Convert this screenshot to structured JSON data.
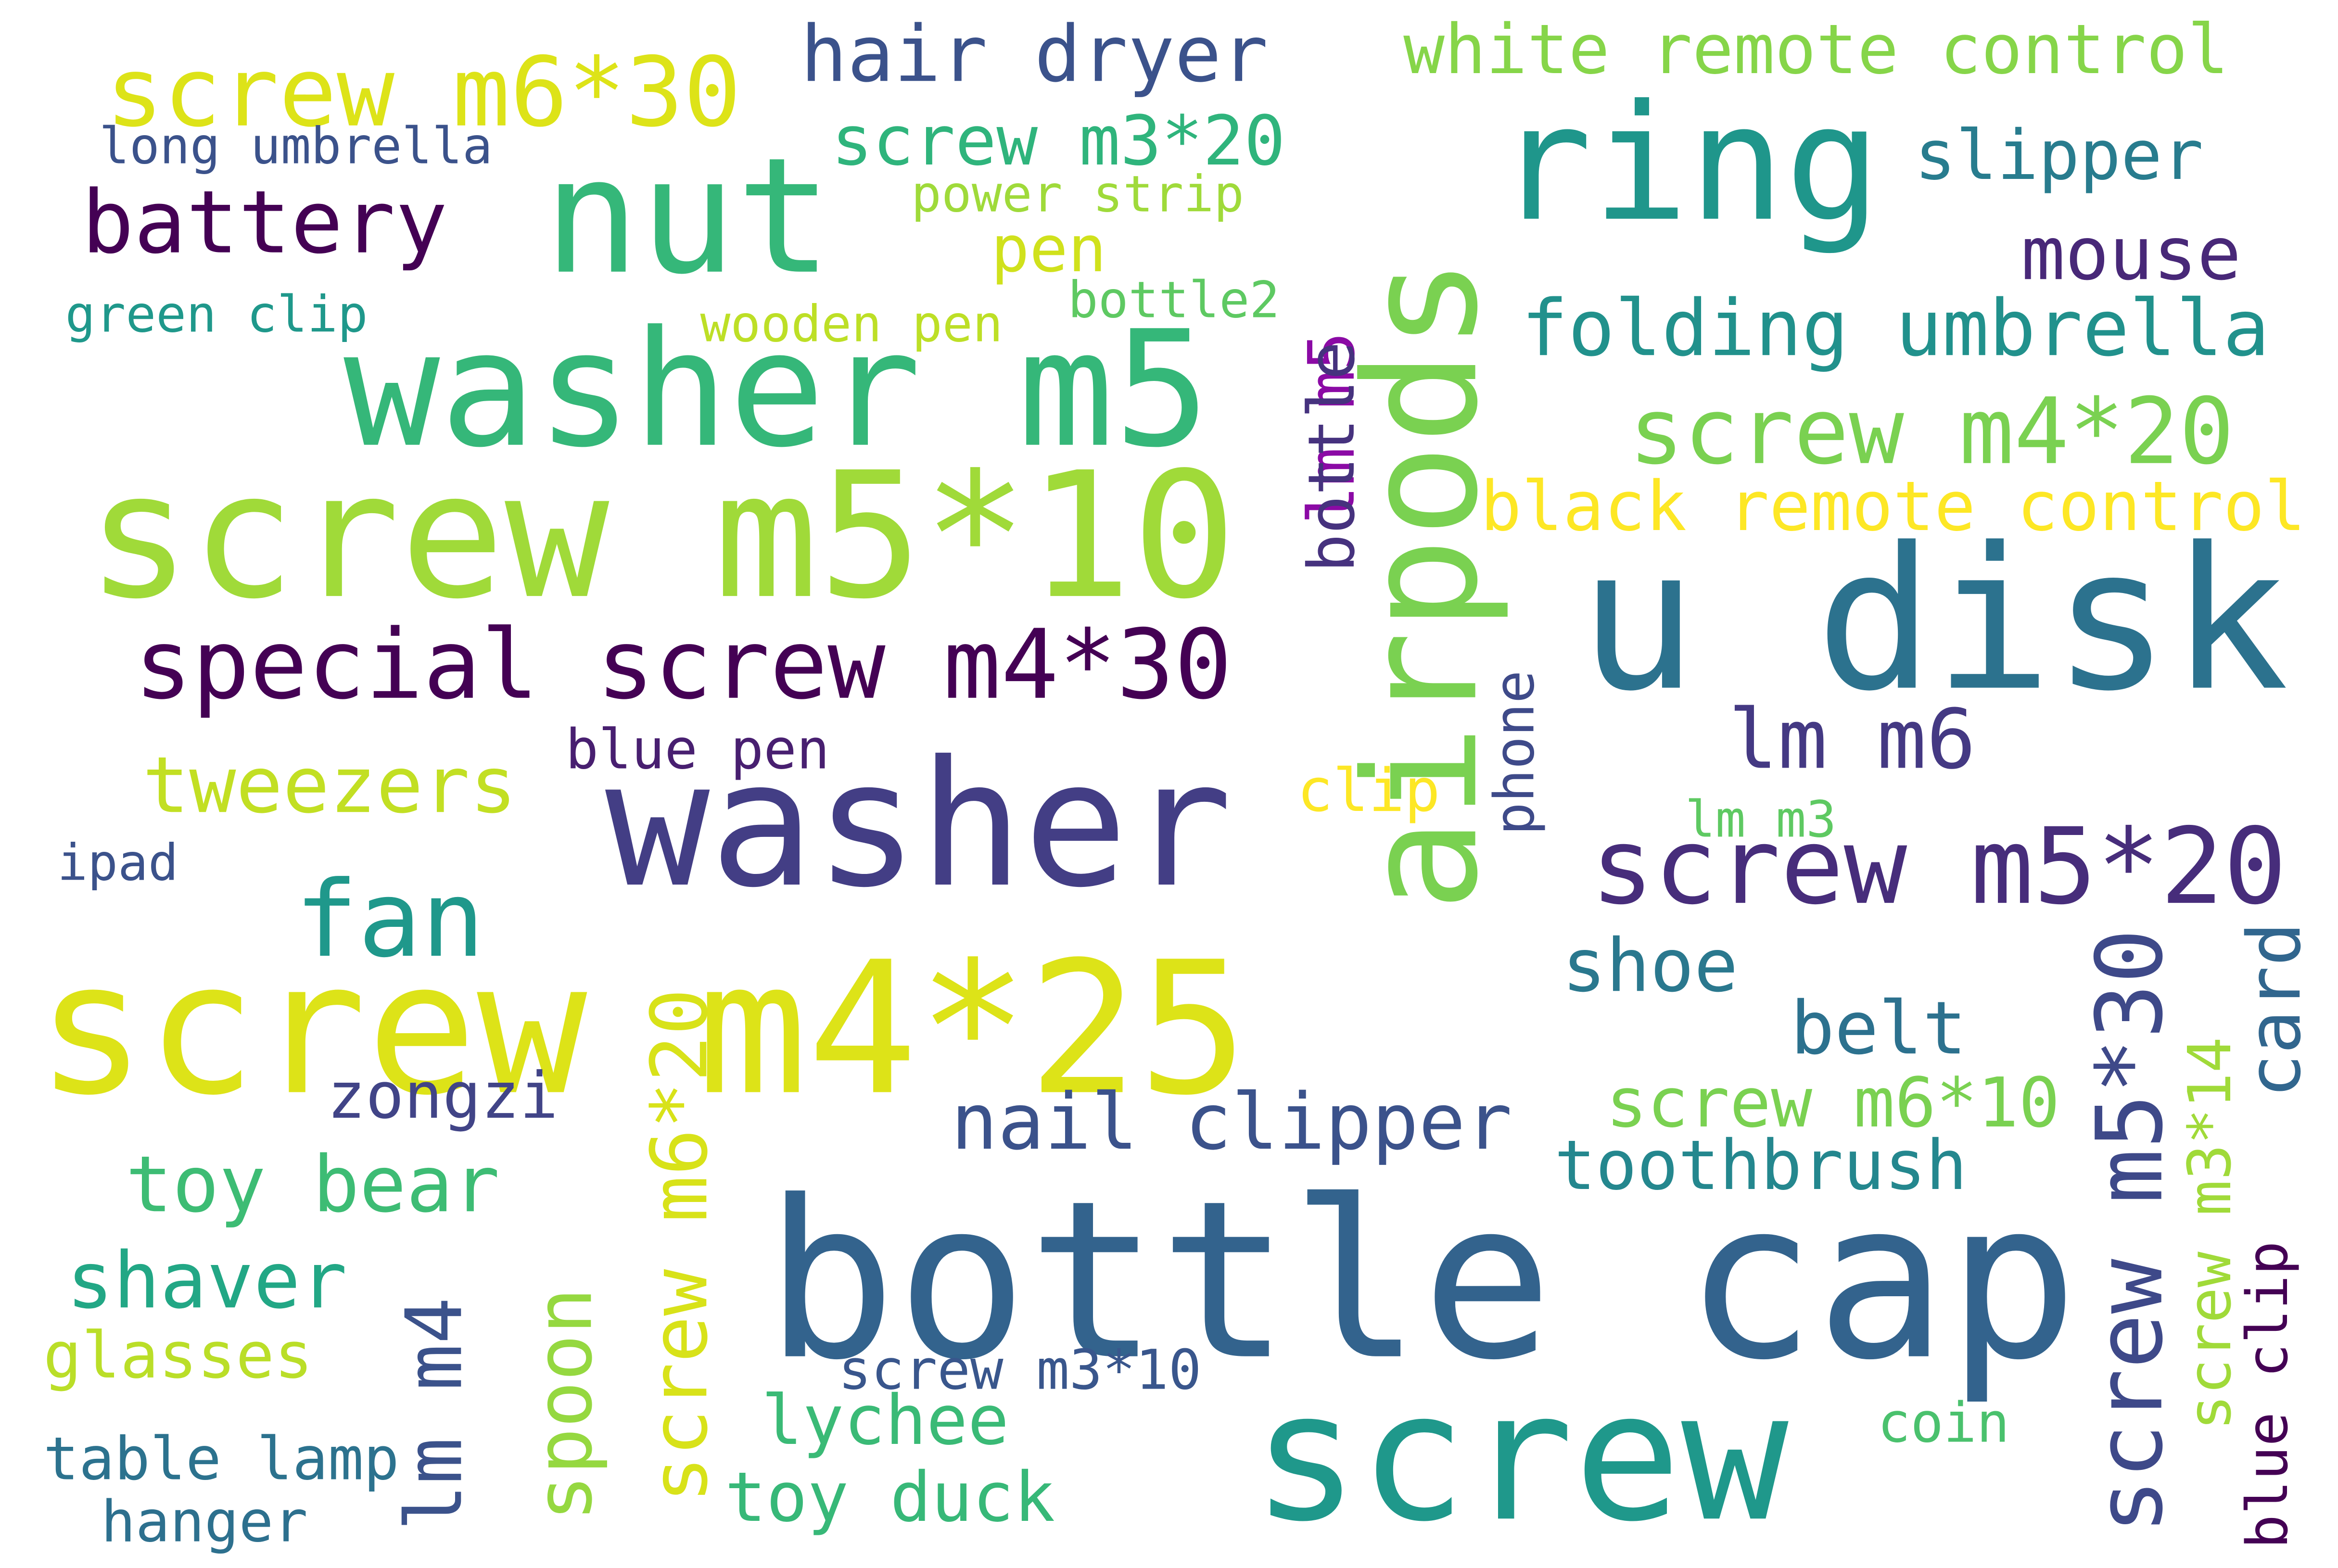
{
  "word_cloud": {
    "words": [
      {
        "id": "airpods",
        "text": "airpods",
        "color": "#7ad151"
      },
      {
        "id": "bottle-cap",
        "text": "bottle cap",
        "color": "#33638d"
      },
      {
        "id": "screw",
        "text": "screw",
        "color": "#1f988b"
      },
      {
        "id": "screw-m4-25",
        "text": "screw m4*25",
        "color": "#dde318"
      },
      {
        "id": "washer",
        "text": "washer",
        "color": "#433e85"
      },
      {
        "id": "u-disk",
        "text": "u disk",
        "color": "#2c728e"
      },
      {
        "id": "screw-m5-10",
        "text": "screw m5*10",
        "color": "#a0da39"
      },
      {
        "id": "washer-m5",
        "text": "washer m5",
        "color": "#35b779"
      },
      {
        "id": "nut",
        "text": "nut",
        "color": "#35b779"
      },
      {
        "id": "ring",
        "text": "ring",
        "color": "#1f968b"
      },
      {
        "id": "special-screw-m4-30",
        "text": "special screw m4*30",
        "color": "#440154"
      },
      {
        "id": "screw-m5-20",
        "text": "screw m5*20",
        "color": "#472d7b"
      },
      {
        "id": "screw-m6-30-top",
        "text": "screw m6*30",
        "color": "#dde318"
      },
      {
        "id": "screw-m4-20",
        "text": "screw m4*20",
        "color": "#7ad151"
      },
      {
        "id": "folding-umbrella",
        "text": "folding umbrella",
        "color": "#21918c"
      },
      {
        "id": "hair-dryer",
        "text": "hair dryer",
        "color": "#3b528b"
      },
      {
        "id": "white-remote-control",
        "text": "white remote control",
        "color": "#86d549"
      },
      {
        "id": "nail-clipper",
        "text": "nail clipper",
        "color": "#3b528b"
      },
      {
        "id": "screw-m5-30",
        "text": "screw m5*30",
        "color": "#3e4989"
      },
      {
        "id": "screw-m6-20",
        "text": "screw m6*20",
        "color": "#d8e219"
      },
      {
        "id": "black-remote-control",
        "text": "black remote control",
        "color": "#fde725"
      },
      {
        "id": "fan",
        "text": "fan",
        "color": "#1f988b"
      },
      {
        "id": "battery",
        "text": "battery",
        "color": "#440154"
      },
      {
        "id": "lm-m6",
        "text": "lm m6",
        "color": "#443983"
      },
      {
        "id": "toy-bear",
        "text": "toy bear",
        "color": "#3dbc74"
      },
      {
        "id": "shaver",
        "text": "shaver",
        "color": "#22a785"
      },
      {
        "id": "tweezers",
        "text": "tweezers",
        "color": "#c2df23"
      },
      {
        "id": "mouse",
        "text": "mouse",
        "color": "#482878"
      },
      {
        "id": "shoe",
        "text": "shoe",
        "color": "#2a788e"
      },
      {
        "id": "toothbrush",
        "text": "toothbrush",
        "color": "#24878e"
      },
      {
        "id": "belt",
        "text": "belt",
        "color": "#2c718e"
      },
      {
        "id": "screw-m6-10",
        "text": "screw m6*10",
        "color": "#7ad151"
      },
      {
        "id": "screw-m3-20",
        "text": "screw m3*20",
        "color": "#2fb47c"
      },
      {
        "id": "card",
        "text": "card",
        "color": "#31668e"
      },
      {
        "id": "lm-m4",
        "text": "lm m4",
        "color": "#3b528b"
      },
      {
        "id": "spoon",
        "text": "spoon",
        "color": "#95d840"
      },
      {
        "id": "slipper",
        "text": "slipper",
        "color": "#287c8e"
      },
      {
        "id": "toy-duck",
        "text": "toy duck",
        "color": "#37b878"
      },
      {
        "id": "lm-m5",
        "text": "lm m5",
        "color": "#8b0aa5"
      },
      {
        "id": "zongzi",
        "text": "zongzi",
        "color": "#414487"
      },
      {
        "id": "bottle",
        "text": "bottle",
        "color": "#46327e"
      },
      {
        "id": "lychee",
        "text": "lychee",
        "color": "#3aba76"
      },
      {
        "id": "screw-m3-14",
        "text": "screw m3*14",
        "color": "#a0da39"
      },
      {
        "id": "pen",
        "text": "pen",
        "color": "#d0e11c"
      },
      {
        "id": "glasses",
        "text": "glasses",
        "color": "#bade28"
      },
      {
        "id": "clip",
        "text": "clip",
        "color": "#fde725"
      },
      {
        "id": "table-lamp",
        "text": "table lamp",
        "color": "#2c728e"
      },
      {
        "id": "blue-clip",
        "text": "blue clip",
        "color": "#440154"
      },
      {
        "id": "hanger",
        "text": "hanger",
        "color": "#2d708e"
      },
      {
        "id": "screw-m3-10",
        "text": "screw m3*10",
        "color": "#39568c"
      },
      {
        "id": "long-umbrella",
        "text": "long umbrella",
        "color": "#3b528b"
      },
      {
        "id": "blue-pen",
        "text": "blue pen",
        "color": "#481f70"
      },
      {
        "id": "power-strip",
        "text": "power strip",
        "color": "#9fda3a"
      },
      {
        "id": "wooden-pen",
        "text": "wooden pen",
        "color": "#bddf26"
      },
      {
        "id": "phone",
        "text": "phone",
        "color": "#3e4a89"
      },
      {
        "id": "green-clip",
        "text": "green clip",
        "color": "#1f988b"
      },
      {
        "id": "bottle2",
        "text": "bottle2",
        "color": "#5ec962"
      },
      {
        "id": "coin",
        "text": "coin",
        "color": "#4ac16d"
      },
      {
        "id": "ipad",
        "text": "ipad",
        "color": "#3b528b"
      },
      {
        "id": "lm-m3",
        "text": "lm m3",
        "color": "#5ec962"
      }
    ]
  }
}
